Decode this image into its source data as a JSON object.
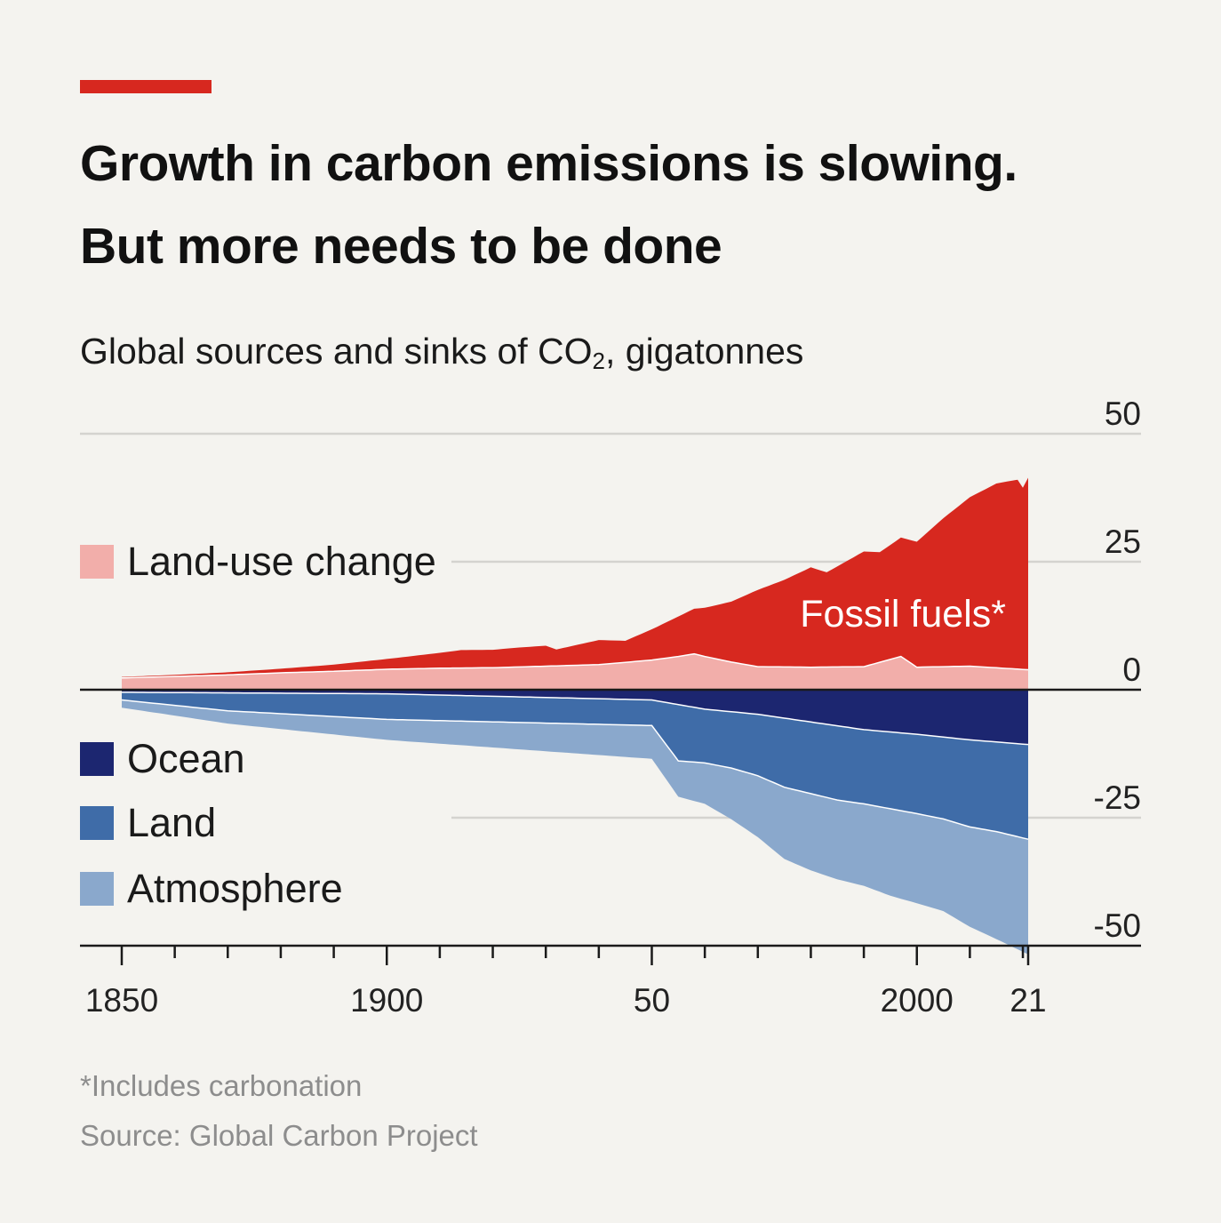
{
  "header": {
    "title_line1": "Growth in carbon emissions is slowing.",
    "title_line2": "But more needs to be done",
    "subtitle_pre": "Global sources and sinks of CO",
    "subtitle_sub": "2",
    "subtitle_post": ", gigatonnes"
  },
  "footer": {
    "note": "*Includes carbonation",
    "source": "Source: Global Carbon Project"
  },
  "colors": {
    "fossil": "#d7281f",
    "land_use": "#f2aeaa",
    "ocean": "#1c2670",
    "land": "#3f6ca8",
    "atmosphere": "#8aa8cc",
    "grid": "#d4d3cf",
    "axis": "#1a1a1a",
    "accent": "#d7281f"
  },
  "chart_data": {
    "type": "area",
    "title": "Global sources and sinks of CO2, gigatonnes",
    "x_range": [
      1850,
      2021
    ],
    "ylim": [
      -50,
      50
    ],
    "y_ticks": [
      50,
      25,
      0,
      -25,
      -50
    ],
    "y_tick_labels": [
      "50",
      "25",
      "0",
      "-25",
      "-50"
    ],
    "y_axis_side": "right",
    "x_major_ticks": [
      1850,
      1900,
      1950,
      2000,
      2021
    ],
    "x_tick_labels": [
      "1850",
      "1900",
      "50",
      "2000",
      "21"
    ],
    "x_minor_tick_step": 10,
    "grid": true,
    "legend": [
      {
        "key": "land_use",
        "label": "Land-use change"
      },
      {
        "key": "ocean",
        "label": "Ocean"
      },
      {
        "key": "land",
        "label": "Land"
      },
      {
        "key": "atmosphere",
        "label": "Atmosphere"
      }
    ],
    "annotations": [
      {
        "text": "Fossil fuels*",
        "series": "fossil_fuels"
      }
    ],
    "series": [
      {
        "name": "Land-use change",
        "key": "land_use",
        "direction": "source",
        "x": [
          1850,
          1860,
          1870,
          1880,
          1890,
          1900,
          1910,
          1920,
          1930,
          1940,
          1950,
          1955,
          1958,
          1960,
          1965,
          1970,
          1980,
          1990,
          1997,
          2000,
          2010,
          2021
        ],
        "y": [
          2.3,
          2.6,
          2.9,
          3.3,
          3.6,
          4.0,
          4.2,
          4.3,
          4.6,
          4.9,
          5.8,
          6.5,
          7.0,
          6.5,
          5.4,
          4.5,
          4.4,
          4.5,
          6.5,
          4.4,
          4.6,
          3.9
        ]
      },
      {
        "name": "Fossil fuels*",
        "key": "fossil_fuels",
        "direction": "source",
        "x": [
          1850,
          1860,
          1870,
          1880,
          1890,
          1900,
          1910,
          1914,
          1920,
          1925,
          1930,
          1932,
          1940,
          1945,
          1950,
          1955,
          1960,
          1965,
          1970,
          1975,
          1980,
          1983,
          1990,
          1993,
          2000,
          2005,
          2010,
          2015,
          2019,
          2020,
          2021
        ],
        "y": [
          0.2,
          0.3,
          0.5,
          0.8,
          1.3,
          2.0,
          3.0,
          3.5,
          3.5,
          3.8,
          4.0,
          3.2,
          4.8,
          4.2,
          6.0,
          7.8,
          9.5,
          11.8,
          15.0,
          17.0,
          19.5,
          18.5,
          22.5,
          21.5,
          24.5,
          29.0,
          33.0,
          36.0,
          37.0,
          35.5,
          37.5
        ]
      },
      {
        "name": "Ocean",
        "key": "ocean",
        "direction": "sink",
        "x": [
          1850,
          1900,
          1950,
          1960,
          1970,
          1980,
          1990,
          2000,
          2010,
          2021
        ],
        "y": [
          0.5,
          0.8,
          2.0,
          3.8,
          4.8,
          6.3,
          7.8,
          8.7,
          9.8,
          10.7
        ]
      },
      {
        "name": "Land",
        "key": "land",
        "direction": "sink",
        "x": [
          1850,
          1860,
          1870,
          1880,
          1890,
          1900,
          1910,
          1920,
          1930,
          1940,
          1950,
          1955,
          1960,
          1965,
          1970,
          1975,
          1980,
          1985,
          1990,
          1995,
          2000,
          2005,
          2010,
          2015,
          2021
        ],
        "y": [
          1.5,
          2.5,
          3.5,
          4.0,
          4.5,
          5.0,
          5.0,
          5.0,
          5.0,
          5.0,
          5.0,
          11.0,
          10.5,
          11.0,
          12.0,
          13.5,
          14.0,
          14.5,
          14.5,
          15.0,
          15.5,
          16.0,
          17.0,
          17.5,
          18.5
        ]
      },
      {
        "name": "Atmosphere",
        "key": "atmosphere",
        "direction": "sink",
        "x": [
          1850,
          1860,
          1870,
          1880,
          1890,
          1900,
          1910,
          1920,
          1930,
          1940,
          1950,
          1955,
          1960,
          1965,
          1970,
          1975,
          1980,
          1985,
          1990,
          1995,
          2000,
          2005,
          2010,
          2015,
          2021
        ],
        "y": [
          1.5,
          2.0,
          2.5,
          3.0,
          3.5,
          4.0,
          4.5,
          5.0,
          5.5,
          6.0,
          6.5,
          7.0,
          8.0,
          10.0,
          12.0,
          14.0,
          15.0,
          15.5,
          16.0,
          17.0,
          17.5,
          18.0,
          19.5,
          21.0,
          22.5
        ]
      }
    ]
  }
}
